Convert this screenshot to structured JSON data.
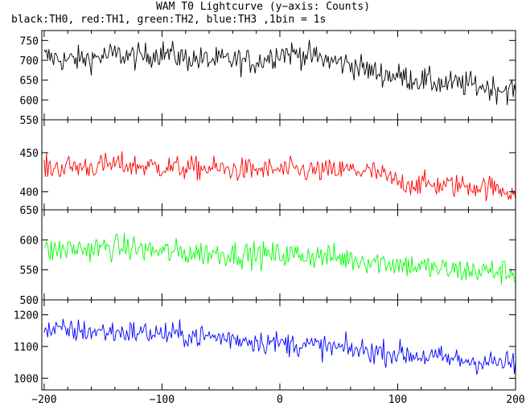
{
  "chart_data": {
    "type": "line",
    "title": "WAM T0 Lightcurve (y−axis: Counts)",
    "subtitle": "black:TH0, red:TH1, green:TH2, blue:TH3 ,1bin = 1s",
    "x_ticks": [
      -200,
      -100,
      0,
      100,
      200
    ],
    "xlim": [
      -202,
      200
    ],
    "panels": [
      {
        "name": "TH0",
        "color": "#000000",
        "ylim": [
          550,
          775
        ],
        "y_ticks": [
          550,
          600,
          650,
          700,
          750
        ],
        "x": [
          -200,
          -180,
          -160,
          -140,
          -120,
          -100,
          -80,
          -60,
          -40,
          -20,
          0,
          20,
          40,
          60,
          80,
          100,
          120,
          140,
          160,
          180,
          200
        ],
        "y": [
          710,
          700,
          705,
          715,
          708,
          720,
          705,
          700,
          700,
          695,
          720,
          715,
          700,
          690,
          670,
          660,
          650,
          640,
          640,
          630,
          625
        ],
        "amplitude": 30
      },
      {
        "name": "TH1",
        "color": "#ff0000",
        "ylim": [
          377,
          492
        ],
        "y_ticks": [
          400,
          450
        ],
        "x": [
          -200,
          -180,
          -160,
          -140,
          -120,
          -100,
          -80,
          -60,
          -40,
          -20,
          0,
          20,
          40,
          60,
          80,
          100,
          120,
          140,
          160,
          180,
          200
        ],
        "y": [
          430,
          432,
          432,
          435,
          433,
          432,
          430,
          430,
          428,
          428,
          428,
          427,
          426,
          428,
          425,
          412,
          410,
          408,
          408,
          405,
          400
        ],
        "amplitude": 14
      },
      {
        "name": "TH2",
        "color": "#00ff00",
        "ylim": [
          500,
          650
        ],
        "y_ticks": [
          500,
          550,
          600,
          650
        ],
        "x": [
          -200,
          -180,
          -160,
          -140,
          -120,
          -100,
          -80,
          -60,
          -40,
          -20,
          0,
          20,
          40,
          60,
          80,
          100,
          120,
          140,
          160,
          180,
          200
        ],
        "y": [
          580,
          585,
          585,
          588,
          585,
          580,
          578,
          578,
          577,
          575,
          575,
          575,
          572,
          568,
          565,
          560,
          555,
          550,
          548,
          548,
          545
        ],
        "amplitude": 20
      },
      {
        "name": "TH3",
        "color": "#0000ff",
        "ylim": [
          963,
          1247
        ],
        "y_ticks": [
          1000,
          1100,
          1200
        ],
        "x": [
          -200,
          -180,
          -160,
          -140,
          -120,
          -100,
          -80,
          -60,
          -40,
          -20,
          0,
          20,
          40,
          60,
          80,
          100,
          120,
          140,
          160,
          180,
          200
        ],
        "y": [
          1150,
          1150,
          1148,
          1145,
          1145,
          1140,
          1135,
          1130,
          1125,
          1118,
          1110,
          1105,
          1098,
          1090,
          1085,
          1078,
          1070,
          1062,
          1055,
          1050,
          1045
        ],
        "amplitude": 35
      }
    ]
  }
}
